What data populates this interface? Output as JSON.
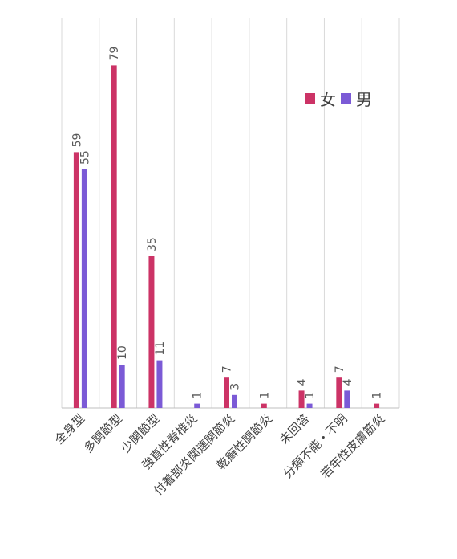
{
  "chart_data": {
    "type": "bar",
    "categories": [
      "全身型",
      "多関節型",
      "少関節型",
      "強直性脊椎炎",
      "付着部炎関連関節炎",
      "乾癬性関節炎",
      "未回答",
      "分類不能・不明",
      "若年性皮膚筋炎"
    ],
    "series": [
      {
        "name": "女",
        "color": "#cc3366",
        "values": [
          59,
          79,
          35,
          0,
          7,
          1,
          4,
          7,
          1
        ]
      },
      {
        "name": "男",
        "color": "#7b5ad6",
        "values": [
          55,
          10,
          11,
          1,
          3,
          0,
          1,
          4,
          0
        ]
      }
    ],
    "data_labels": [
      [
        "59",
        "79",
        "35",
        "",
        "7",
        "1",
        "4",
        "7",
        "1"
      ],
      [
        "55",
        "10",
        "11",
        "1",
        "3",
        "",
        "1",
        "4",
        ""
      ]
    ],
    "ylim": [
      0,
      90
    ],
    "grid": "vertical",
    "legend_position": "top-right"
  }
}
